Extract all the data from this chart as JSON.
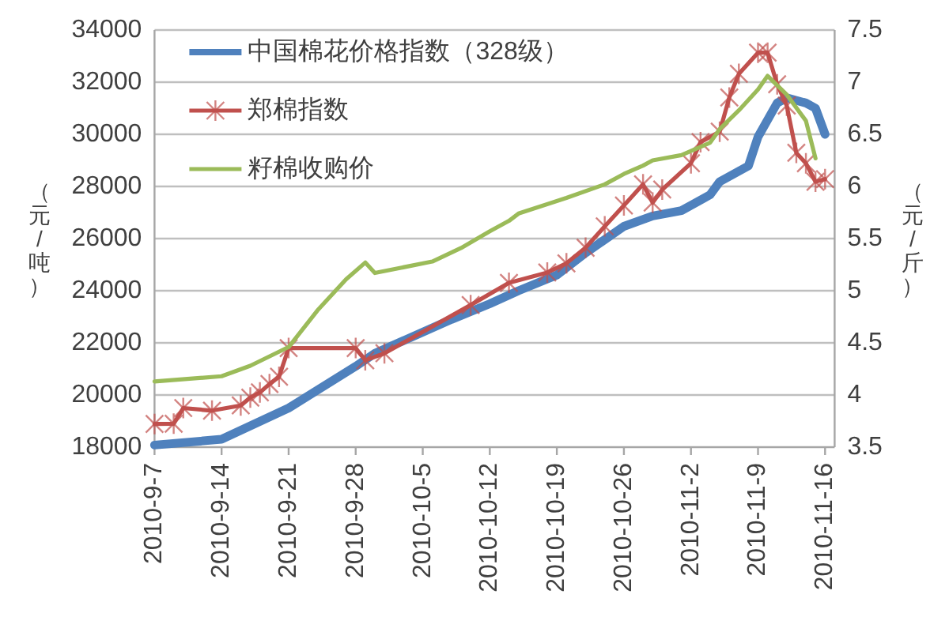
{
  "chart_data": {
    "type": "line",
    "ylabel": "（元/吨）",
    "y2label": "（元/斤）",
    "xlim": [
      "2010-09-07",
      "2010-11-17"
    ],
    "xticks": [
      {
        "value": "2010-09-07",
        "label": "2010-9-7"
      },
      {
        "value": "2010-09-14",
        "label": "2010-9-14"
      },
      {
        "value": "2010-09-21",
        "label": "2010-9-21"
      },
      {
        "value": "2010-09-28",
        "label": "2010-9-28"
      },
      {
        "value": "2010-10-05",
        "label": "2010-10-5"
      },
      {
        "value": "2010-10-12",
        "label": "2010-10-12"
      },
      {
        "value": "2010-10-19",
        "label": "2010-10-19"
      },
      {
        "value": "2010-10-26",
        "label": "2010-10-26"
      },
      {
        "value": "2010-11-02",
        "label": "2010-11-2"
      },
      {
        "value": "2010-11-09",
        "label": "2010-11-9"
      },
      {
        "value": "2010-11-16",
        "label": "2010-11-16"
      }
    ],
    "ylim": [
      18000,
      34000
    ],
    "yticks": [
      18000,
      20000,
      22000,
      24000,
      26000,
      28000,
      30000,
      32000,
      34000
    ],
    "y2lim": [
      3.5,
      7.5
    ],
    "y2ticks": [
      3.5,
      4,
      4.5,
      5,
      5.5,
      6,
      6.5,
      7,
      7.5
    ],
    "grid": "y",
    "legend": "top left",
    "series": [
      {
        "name": "中国棉花价格指数（328级）",
        "color": "#4f81bd",
        "axis": "y",
        "marker": "none",
        "x": [
          "2010-09-07",
          "2010-09-14",
          "2010-09-21",
          "2010-09-28",
          "2010-09-30",
          "2010-10-08",
          "2010-10-12",
          "2010-10-15",
          "2010-10-19",
          "2010-10-22",
          "2010-10-26",
          "2010-10-29",
          "2010-11-01",
          "2010-11-04",
          "2010-11-05",
          "2010-11-08",
          "2010-11-09",
          "2010-11-11",
          "2010-11-12",
          "2010-11-14",
          "2010-11-15",
          "2010-11-16"
        ],
        "values": [
          18080,
          18300,
          19500,
          21100,
          21600,
          22900,
          23500,
          24000,
          24600,
          25450,
          26470,
          26870,
          27070,
          27680,
          28180,
          28790,
          29900,
          31200,
          31400,
          31200,
          31000,
          30000
        ]
      },
      {
        "name": "郑棉指数",
        "color": "#c0504d",
        "axis": "y",
        "marker": "cross",
        "x": [
          "2010-09-07",
          "2010-09-09",
          "2010-09-10",
          "2010-09-13",
          "2010-09-16",
          "2010-09-17",
          "2010-09-18",
          "2010-09-19",
          "2010-09-20",
          "2010-09-21",
          "2010-09-28",
          "2010-09-29",
          "2010-10-01",
          "2010-10-10",
          "2010-10-14",
          "2010-10-18",
          "2010-10-20",
          "2010-10-22",
          "2010-10-24",
          "2010-10-26",
          "2010-10-28",
          "2010-10-29",
          "2010-10-30",
          "2010-11-02",
          "2010-11-03",
          "2010-11-05",
          "2010-11-06",
          "2010-11-07",
          "2010-11-09",
          "2010-11-10",
          "2010-11-11",
          "2010-11-12",
          "2010-11-13",
          "2010-11-14",
          "2010-11-15",
          "2010-11-16"
        ],
        "values": [
          18890,
          18900,
          19500,
          19400,
          19600,
          19900,
          20100,
          20420,
          20700,
          21800,
          21800,
          21330,
          21600,
          23450,
          24300,
          24700,
          25050,
          25650,
          26470,
          27270,
          28080,
          27380,
          27880,
          28890,
          29700,
          30100,
          31410,
          32320,
          33130,
          33130,
          31920,
          31100,
          29290,
          28890,
          28180,
          28280
        ]
      },
      {
        "name": "籽棉收购价",
        "color": "#9bbb59",
        "axis": "y2",
        "marker": "none",
        "x": [
          "2010-09-07",
          "2010-09-14",
          "2010-09-17",
          "2010-09-21",
          "2010-09-24",
          "2010-09-27",
          "2010-09-29",
          "2010-09-30",
          "2010-10-06",
          "2010-10-09",
          "2010-10-12",
          "2010-10-14",
          "2010-10-15",
          "2010-10-20",
          "2010-10-24",
          "2010-10-26",
          "2010-10-28",
          "2010-10-29",
          "2010-11-01",
          "2010-11-04",
          "2010-11-05",
          "2010-11-07",
          "2010-11-09",
          "2010-11-10",
          "2010-11-12",
          "2010-11-14",
          "2010-11-15"
        ],
        "values": [
          4.13,
          4.18,
          4.28,
          4.46,
          4.81,
          5.11,
          5.27,
          5.17,
          5.28,
          5.41,
          5.57,
          5.67,
          5.74,
          5.89,
          6.02,
          6.12,
          6.2,
          6.25,
          6.3,
          6.42,
          6.55,
          6.73,
          6.93,
          7.06,
          6.88,
          6.63,
          6.27
        ]
      }
    ]
  }
}
